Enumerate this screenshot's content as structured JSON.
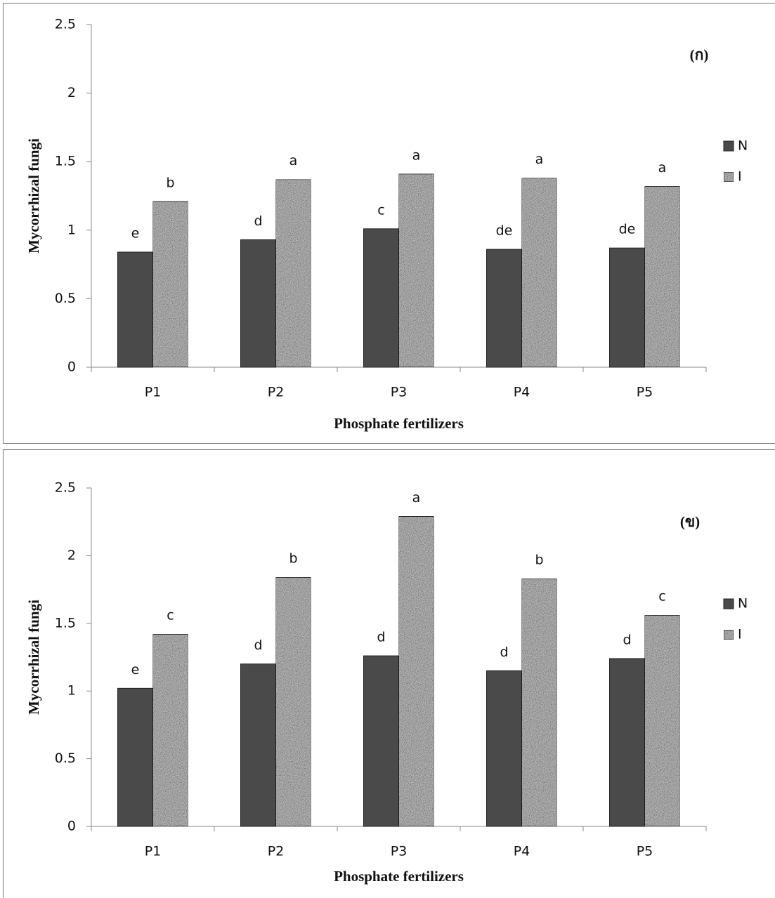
{
  "chart_data": [
    {
      "type": "bar",
      "panel_label": "(ก)",
      "y_label": "Mycorrhizal fungi",
      "x_label": "Phosphate fertilizers",
      "categories": [
        "P1",
        "P2",
        "P3",
        "P4",
        "P5"
      ],
      "series": [
        {
          "name": "N",
          "color": "#4a4a4a",
          "values": [
            0.84,
            0.93,
            1.01,
            0.86,
            0.87
          ],
          "letters": [
            "e",
            "d",
            "c",
            "de",
            "de"
          ]
        },
        {
          "name": "I",
          "color": "#bdbdbd",
          "values": [
            1.21,
            1.37,
            1.41,
            1.38,
            1.32
          ],
          "letters": [
            "b",
            "a",
            "a",
            "a",
            "a"
          ]
        }
      ],
      "ylim": [
        0,
        2.5
      ],
      "yticks": [
        0,
        0.5,
        1,
        1.5,
        2,
        2.5
      ],
      "legend": "right"
    },
    {
      "type": "bar",
      "panel_label": "(ข)",
      "y_label": "Mycorrhizal fungi",
      "x_label": "Phosphate fertilizers",
      "categories": [
        "P1",
        "P2",
        "P3",
        "P4",
        "P5"
      ],
      "series": [
        {
          "name": "N",
          "color": "#4a4a4a",
          "values": [
            1.02,
            1.2,
            1.26,
            1.15,
            1.24
          ],
          "letters": [
            "e",
            "d",
            "d",
            "d",
            "d"
          ]
        },
        {
          "name": "I",
          "color": "#bdbdbd",
          "values": [
            1.42,
            1.84,
            2.29,
            1.83,
            1.56
          ],
          "letters": [
            "c",
            "b",
            "a",
            "b",
            "c"
          ]
        }
      ],
      "ylim": [
        0,
        2.5
      ],
      "yticks": [
        0,
        0.5,
        1,
        1.5,
        2,
        2.5
      ],
      "legend": "right"
    }
  ]
}
